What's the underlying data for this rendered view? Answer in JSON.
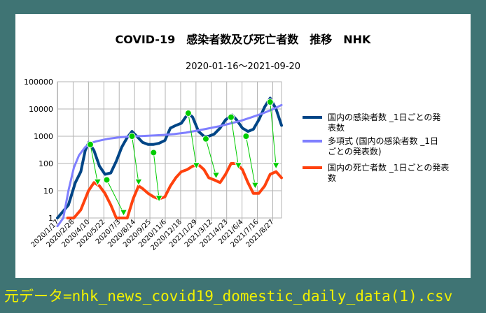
{
  "chart_data": {
    "type": "line",
    "title": "COVID-19　感染者数及び死亡者数　推移　NHK",
    "subtitle": "2020-01-16～2021-09-20",
    "yscale": "log",
    "ylim": [
      1,
      100000
    ],
    "y_ticks": [
      "100000",
      "10000",
      "1000",
      "100",
      "10",
      "1"
    ],
    "x_ticks": [
      "2020/1/17",
      "2020/2/28",
      "2020/4/10",
      "2020/5/22",
      "2020/7/3",
      "2020/8/14",
      "2020/9/25",
      "2020/11/6",
      "2020/12/18",
      "2021/1/29",
      "2021/3/12",
      "2021/4/23",
      "2021/6/4",
      "2021/7/16",
      "2021/8/27"
    ],
    "grid": true,
    "legend_position": "right",
    "series": [
      {
        "name": "国内の感染者数 _1日ごとの発表数",
        "color": "#004586",
        "x": [
          "2020-01-16",
          "2020-02-15",
          "2020-03-05",
          "2020-03-20",
          "2020-04-01",
          "2020-04-11",
          "2020-04-25",
          "2020-05-10",
          "2020-05-25",
          "2020-06-10",
          "2020-06-25",
          "2020-07-10",
          "2020-07-25",
          "2020-08-07",
          "2020-08-20",
          "2020-09-05",
          "2020-09-20",
          "2020-10-05",
          "2020-10-20",
          "2020-11-05",
          "2020-11-20",
          "2020-12-05",
          "2020-12-20",
          "2021-01-08",
          "2021-01-20",
          "2021-02-05",
          "2021-02-20",
          "2021-03-05",
          "2021-03-20",
          "2021-04-05",
          "2021-04-20",
          "2021-05-08",
          "2021-05-20",
          "2021-06-05",
          "2021-06-20",
          "2021-07-05",
          "2021-07-20",
          "2021-08-05",
          "2021-08-20",
          "2021-09-05",
          "2021-09-20"
        ],
        "y": [
          1,
          3,
          20,
          50,
          300,
          600,
          300,
          80,
          40,
          45,
          120,
          400,
          900,
          1500,
          1000,
          600,
          500,
          500,
          550,
          700,
          2000,
          2500,
          3000,
          7000,
          5000,
          1500,
          1000,
          1000,
          1200,
          2000,
          4000,
          6000,
          4000,
          2000,
          1500,
          1800,
          4000,
          12000,
          25000,
          10000,
          2500
        ]
      },
      {
        "name": "多項式 (国内の感染者数 _1日ごとの発表数)",
        "color": "#7f7fff",
        "x": [
          "2020-01-16",
          "2020-02-01",
          "2020-02-15",
          "2020-03-01",
          "2020-03-15",
          "2020-04-01",
          "2020-04-15",
          "2020-05-01",
          "2020-06-01",
          "2020-07-01",
          "2020-08-01",
          "2020-09-01",
          "2020-10-01",
          "2020-11-01",
          "2020-12-01",
          "2021-01-01",
          "2021-02-01",
          "2021-03-01",
          "2021-04-01",
          "2021-05-01",
          "2021-06-01",
          "2021-07-01",
          "2021-08-01",
          "2021-09-01",
          "2021-09-20"
        ],
        "y": [
          0.1,
          1,
          10,
          70,
          200,
          400,
          550,
          650,
          800,
          900,
          980,
          1020,
          1060,
          1120,
          1200,
          1350,
          1600,
          1900,
          2300,
          2900,
          3700,
          5000,
          7000,
          10500,
          14000
        ]
      },
      {
        "name": "国内の死亡者数 _1日ごとの発表数",
        "color": "#ff420e",
        "x": [
          "2020-02-13",
          "2020-03-01",
          "2020-03-20",
          "2020-04-10",
          "2020-04-25",
          "2020-05-10",
          "2020-05-25",
          "2020-06-10",
          "2020-06-25",
          "2020-07-10",
          "2020-07-25",
          "2020-08-10",
          "2020-08-25",
          "2020-09-05",
          "2020-09-20",
          "2020-10-05",
          "2020-10-20",
          "2020-11-05",
          "2020-11-20",
          "2020-12-05",
          "2020-12-20",
          "2021-01-05",
          "2021-01-20",
          "2021-02-05",
          "2021-02-20",
          "2021-03-05",
          "2021-03-20",
          "2021-04-05",
          "2021-04-20",
          "2021-05-05",
          "2021-05-20",
          "2021-06-05",
          "2021-06-20",
          "2021-07-05",
          "2021-07-20",
          "2021-08-05",
          "2021-08-20",
          "2021-09-05",
          "2021-09-20"
        ],
        "y": [
          1,
          1,
          2,
          10,
          20,
          15,
          8,
          3,
          1,
          1,
          1,
          5,
          15,
          12,
          8,
          6,
          5,
          6,
          15,
          30,
          50,
          60,
          80,
          90,
          60,
          30,
          25,
          20,
          40,
          100,
          100,
          60,
          20,
          8,
          8,
          15,
          40,
          50,
          30
        ]
      }
    ],
    "annotations": [
      {
        "type": "marker-lines",
        "color": "#00cc00",
        "points": [
          {
            "x": "2020-04-15",
            "y": 500
          },
          {
            "x": "2020-05-05",
            "y": 20
          },
          {
            "x": "2020-05-30",
            "y": 25
          },
          {
            "x": "2020-07-15",
            "y": 1.5
          },
          {
            "x": "2020-08-07",
            "y": 1000
          },
          {
            "x": "2020-08-25",
            "y": 20
          },
          {
            "x": "2020-10-05",
            "y": 250
          },
          {
            "x": "2020-10-20",
            "y": 5
          },
          {
            "x": "2021-01-08",
            "y": 7000
          },
          {
            "x": "2021-01-30",
            "y": 80
          },
          {
            "x": "2021-02-25",
            "y": 800
          },
          {
            "x": "2021-03-25",
            "y": 35
          },
          {
            "x": "2021-05-05",
            "y": 5000
          },
          {
            "x": "2021-05-25",
            "y": 80
          },
          {
            "x": "2021-06-15",
            "y": 1000
          },
          {
            "x": "2021-07-10",
            "y": 15
          },
          {
            "x": "2021-08-20",
            "y": 18000
          },
          {
            "x": "2021-09-05",
            "y": 80
          }
        ]
      }
    ]
  },
  "footer": {
    "text": "元データ=nhk_news_covid19_domestic_daily_data(1).csv"
  }
}
